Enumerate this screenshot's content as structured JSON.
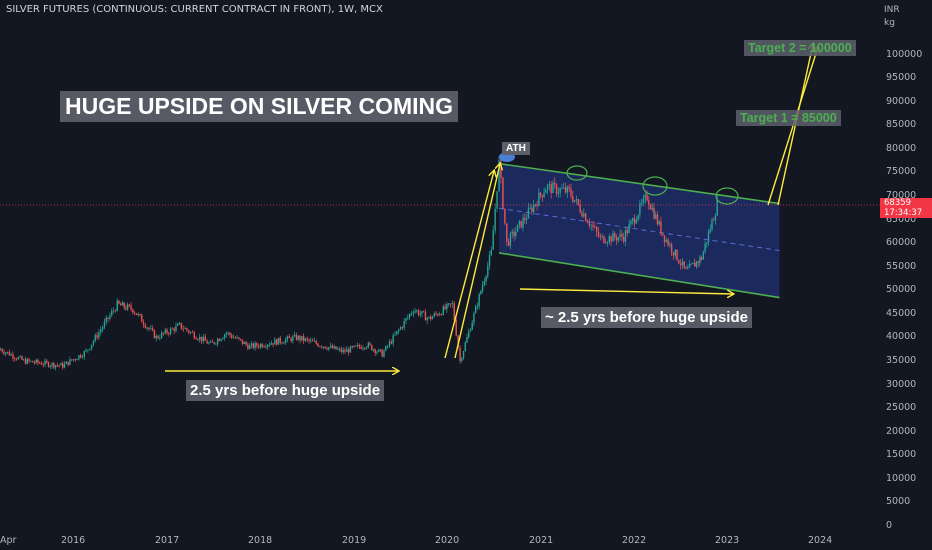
{
  "header": {
    "symbol_line": "SILVER FUTURES (CONTINUOUS: CURRENT CONTRACT IN FRONT), 1W, MCX"
  },
  "price_axis": {
    "currency": "INR",
    "unit": "kg",
    "ticks": [
      "0",
      "5000",
      "10000",
      "15000",
      "20000",
      "25000",
      "30000",
      "35000",
      "40000",
      "45000",
      "50000",
      "55000",
      "60000",
      "65000",
      "70000",
      "75000",
      "80000",
      "85000",
      "90000",
      "95000",
      "100000"
    ],
    "last_price": "68359",
    "countdown": "17:34:37"
  },
  "time_axis": {
    "ticks": [
      "Apr",
      "2016",
      "2017",
      "2018",
      "2019",
      "2020",
      "2021",
      "2022",
      "2023",
      "2024"
    ]
  },
  "annotations": {
    "headline": "HUGE UPSIDE ON SILVER COMING",
    "note_left": "2.5 yrs before huge upside",
    "note_right": "~ 2.5 yrs before huge upside",
    "target_1": "Target 1 = 85000",
    "target_2": "Target 2 = 100000",
    "ath": "ATH"
  },
  "colors": {
    "up": "#26a69a",
    "down": "#ef5350",
    "channel": "#4caf50",
    "channel_fill": "#1f2d66",
    "arrow": "#ffeb3b",
    "last_price": "#f23645"
  },
  "chart_data": {
    "type": "candlestick",
    "timeframe": "1W",
    "x_range": [
      "2015-03",
      "2024-06"
    ],
    "y_range": [
      0,
      104000
    ],
    "last_price": 68359,
    "grid": false,
    "approx_weekly_close_path": [
      {
        "x": "2015-04",
        "y": 37500
      },
      {
        "x": "2015-07",
        "y": 35000
      },
      {
        "x": "2015-12",
        "y": 34000
      },
      {
        "x": "2016-03",
        "y": 37000
      },
      {
        "x": "2016-07",
        "y": 47000
      },
      {
        "x": "2016-09",
        "y": 46000
      },
      {
        "x": "2016-12",
        "y": 40000
      },
      {
        "x": "2017-03",
        "y": 42500
      },
      {
        "x": "2017-07",
        "y": 38500
      },
      {
        "x": "2017-09",
        "y": 41000
      },
      {
        "x": "2017-12",
        "y": 38000
      },
      {
        "x": "2018-06",
        "y": 40000
      },
      {
        "x": "2018-12",
        "y": 37000
      },
      {
        "x": "2019-03",
        "y": 38500
      },
      {
        "x": "2019-05",
        "y": 36500
      },
      {
        "x": "2019-09",
        "y": 46000
      },
      {
        "x": "2019-11",
        "y": 44000
      },
      {
        "x": "2020-02",
        "y": 47000
      },
      {
        "x": "2020-03",
        "y": 35000
      },
      {
        "x": "2020-05",
        "y": 46000
      },
      {
        "x": "2020-07",
        "y": 58000
      },
      {
        "x": "2020-08",
        "y": 77000
      },
      {
        "x": "2020-09",
        "y": 60000
      },
      {
        "x": "2020-12",
        "y": 67000
      },
      {
        "x": "2021-02",
        "y": 72000
      },
      {
        "x": "2021-05",
        "y": 71000
      },
      {
        "x": "2021-09",
        "y": 61000
      },
      {
        "x": "2021-12",
        "y": 61500
      },
      {
        "x": "2022-03",
        "y": 70000
      },
      {
        "x": "2022-05",
        "y": 62000
      },
      {
        "x": "2022-08",
        "y": 54000
      },
      {
        "x": "2022-10",
        "y": 57000
      },
      {
        "x": "2022-12",
        "y": 68359
      }
    ],
    "channel": {
      "upper": [
        {
          "x": "2020-08",
          "y": 77000
        },
        {
          "x": "2023-08",
          "y": 68500
        }
      ],
      "lower": [
        {
          "x": "2020-08",
          "y": 58000
        },
        {
          "x": "2023-08",
          "y": 48500
        }
      ]
    },
    "targets": [
      {
        "label": "Target 1 = 85000",
        "y": 85000
      },
      {
        "label": "Target 2 = 100000",
        "y": 100000
      }
    ],
    "annotations": [
      "HUGE UPSIDE ON SILVER COMING",
      "2.5 yrs before huge upside",
      "~ 2.5 yrs before huge upside",
      "ATH"
    ]
  }
}
